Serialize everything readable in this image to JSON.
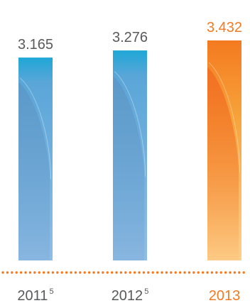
{
  "chart_data": {
    "type": "bar",
    "categories": [
      "2011",
      "2012",
      "2013"
    ],
    "footnote_markers": [
      "5",
      "5",
      ""
    ],
    "values": [
      3.165,
      3.276,
      3.432
    ],
    "value_labels": [
      "3.165",
      "3.276",
      "3.432"
    ],
    "highlight_index": 2,
    "ylim": [
      0,
      3.432
    ],
    "title": "",
    "xlabel": "",
    "ylabel": "",
    "grid": false,
    "legend": "none"
  },
  "colors": {
    "bar_top": "#1ea7d6",
    "bar_mid": "#5aa6d8",
    "bar_bottom": "#8fbde6",
    "bar_shade": "#5d8fbe",
    "highlight_top": "#f47a20",
    "highlight_mid": "#f7a33a",
    "highlight_bottom": "#fdd08a",
    "highlight_shade": "#f16a22",
    "label_text": "#58595b",
    "highlight_text": "#f47a20",
    "baseline_dots": "#f47a20"
  }
}
